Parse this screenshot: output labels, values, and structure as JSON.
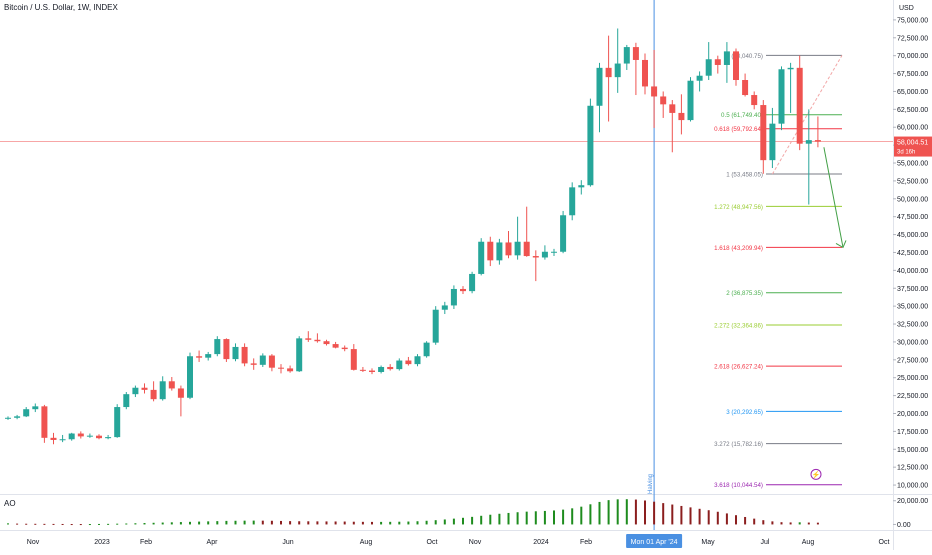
{
  "header": {
    "symbol": "Bitcoin / U.S. Dollar, 1W, INDEX",
    "currency": "USD"
  },
  "indicator": {
    "name": "AO"
  },
  "colors": {
    "up": "#26a69a",
    "down": "#ef5350",
    "vline": "#4a90e2",
    "price_line": "#f7a6a6",
    "ao_up": "#1e8c1e",
    "ao_down": "#8b1e1e",
    "price_tag": "#ef5350",
    "projection_arrow": "#43a047",
    "halving_icon": "#9c27b0"
  },
  "price_label": {
    "value": "58,004.51",
    "countdown": "3d 16h"
  },
  "cursor_date": "Mon 01 Apr '24",
  "event_label": "Halving",
  "chart_data": {
    "type": "candlestick",
    "title": "Bitcoin / U.S. Dollar, 1W, INDEX",
    "ylabel": "USD",
    "ylim": [
      8750,
      77500
    ],
    "y_ticks": [
      10000,
      12500,
      15000,
      17500,
      20000,
      22500,
      25000,
      27500,
      30000,
      32500,
      35000,
      37500,
      40000,
      42500,
      45000,
      47500,
      50000,
      52500,
      55000,
      57500,
      60000,
      62500,
      65000,
      67500,
      70000,
      72500,
      75000
    ],
    "x_tick_labels": [
      "Nov",
      "2023",
      "Feb",
      "Apr",
      "Jun",
      "Aug",
      "Oct",
      "Nov",
      "2024",
      "Feb",
      "May",
      "Jul",
      "Aug",
      "Oct"
    ],
    "series": [
      {
        "t": 0,
        "o": 19300,
        "h": 19600,
        "l": 19100,
        "c": 19400
      },
      {
        "t": 1,
        "o": 19400,
        "h": 19800,
        "l": 19200,
        "c": 19600
      },
      {
        "t": 2,
        "o": 19600,
        "h": 20900,
        "l": 19500,
        "c": 20600
      },
      {
        "t": 3,
        "o": 20600,
        "h": 21400,
        "l": 20200,
        "c": 21000
      },
      {
        "t": 4,
        "o": 21000,
        "h": 21200,
        "l": 15900,
        "c": 16600
      },
      {
        "t": 5,
        "o": 16600,
        "h": 17300,
        "l": 15700,
        "c": 16300
      },
      {
        "t": 6,
        "o": 16300,
        "h": 17000,
        "l": 16000,
        "c": 16400
      },
      {
        "t": 7,
        "o": 16400,
        "h": 17300,
        "l": 16200,
        "c": 17200
      },
      {
        "t": 8,
        "o": 17200,
        "h": 17500,
        "l": 16500,
        "c": 16800
      },
      {
        "t": 9,
        "o": 16800,
        "h": 17200,
        "l": 16600,
        "c": 16900
      },
      {
        "t": 10,
        "o": 16900,
        "h": 17100,
        "l": 16400,
        "c": 16550
      },
      {
        "t": 11,
        "o": 16550,
        "h": 17000,
        "l": 16400,
        "c": 16700
      },
      {
        "t": 12,
        "o": 16700,
        "h": 21300,
        "l": 16600,
        "c": 20900
      },
      {
        "t": 13,
        "o": 20900,
        "h": 23000,
        "l": 20600,
        "c": 22700
      },
      {
        "t": 14,
        "o": 22700,
        "h": 23900,
        "l": 22300,
        "c": 23600
      },
      {
        "t": 15,
        "o": 23600,
        "h": 24200,
        "l": 22800,
        "c": 23300
      },
      {
        "t": 16,
        "o": 23300,
        "h": 24500,
        "l": 21700,
        "c": 22000
      },
      {
        "t": 17,
        "o": 22000,
        "h": 25200,
        "l": 21800,
        "c": 24500
      },
      {
        "t": 18,
        "o": 24500,
        "h": 25100,
        "l": 23200,
        "c": 23500
      },
      {
        "t": 19,
        "o": 23500,
        "h": 23900,
        "l": 19600,
        "c": 22200
      },
      {
        "t": 20,
        "o": 22200,
        "h": 28500,
        "l": 22000,
        "c": 28000
      },
      {
        "t": 21,
        "o": 28000,
        "h": 28800,
        "l": 27200,
        "c": 27800
      },
      {
        "t": 22,
        "o": 27800,
        "h": 28600,
        "l": 27400,
        "c": 28300
      },
      {
        "t": 23,
        "o": 28300,
        "h": 30800,
        "l": 28000,
        "c": 30400
      },
      {
        "t": 24,
        "o": 30400,
        "h": 30500,
        "l": 27200,
        "c": 27600
      },
      {
        "t": 25,
        "o": 27600,
        "h": 29800,
        "l": 27300,
        "c": 29300
      },
      {
        "t": 26,
        "o": 29300,
        "h": 29800,
        "l": 26600,
        "c": 27000
      },
      {
        "t": 27,
        "o": 27000,
        "h": 27700,
        "l": 26100,
        "c": 26800
      },
      {
        "t": 28,
        "o": 26800,
        "h": 28400,
        "l": 26500,
        "c": 28100
      },
      {
        "t": 29,
        "o": 28100,
        "h": 28300,
        "l": 25900,
        "c": 26400
      },
      {
        "t": 30,
        "o": 26400,
        "h": 26900,
        "l": 25600,
        "c": 26300
      },
      {
        "t": 31,
        "o": 26300,
        "h": 26700,
        "l": 25700,
        "c": 25900
      },
      {
        "t": 32,
        "o": 25900,
        "h": 30800,
        "l": 25800,
        "c": 30500
      },
      {
        "t": 33,
        "o": 30500,
        "h": 31500,
        "l": 30000,
        "c": 30300
      },
      {
        "t": 34,
        "o": 30300,
        "h": 31200,
        "l": 29900,
        "c": 30100
      },
      {
        "t": 35,
        "o": 30100,
        "h": 30300,
        "l": 29500,
        "c": 29700
      },
      {
        "t": 36,
        "o": 29700,
        "h": 30000,
        "l": 29100,
        "c": 29200
      },
      {
        "t": 37,
        "o": 29200,
        "h": 29500,
        "l": 28700,
        "c": 29000
      },
      {
        "t": 38,
        "o": 29000,
        "h": 29700,
        "l": 26000,
        "c": 26100
      },
      {
        "t": 39,
        "o": 26100,
        "h": 26500,
        "l": 25800,
        "c": 26000
      },
      {
        "t": 40,
        "o": 26000,
        "h": 26300,
        "l": 25500,
        "c": 25800
      },
      {
        "t": 41,
        "o": 25800,
        "h": 26700,
        "l": 25600,
        "c": 26500
      },
      {
        "t": 42,
        "o": 26500,
        "h": 26900,
        "l": 26000,
        "c": 26200
      },
      {
        "t": 43,
        "o": 26200,
        "h": 27700,
        "l": 26000,
        "c": 27400
      },
      {
        "t": 44,
        "o": 27400,
        "h": 27900,
        "l": 26700,
        "c": 26900
      },
      {
        "t": 45,
        "o": 26900,
        "h": 28300,
        "l": 26600,
        "c": 28000
      },
      {
        "t": 46,
        "o": 28000,
        "h": 30100,
        "l": 27800,
        "c": 29900
      },
      {
        "t": 47,
        "o": 29900,
        "h": 35000,
        "l": 29600,
        "c": 34500
      },
      {
        "t": 48,
        "o": 34500,
        "h": 35600,
        "l": 33900,
        "c": 35100
      },
      {
        "t": 49,
        "o": 35100,
        "h": 37900,
        "l": 34600,
        "c": 37400
      },
      {
        "t": 50,
        "o": 37400,
        "h": 37800,
        "l": 36700,
        "c": 37100
      },
      {
        "t": 51,
        "o": 37100,
        "h": 39800,
        "l": 36800,
        "c": 39500
      },
      {
        "t": 52,
        "o": 39500,
        "h": 44500,
        "l": 39300,
        "c": 44000
      },
      {
        "t": 53,
        "o": 44000,
        "h": 44700,
        "l": 40600,
        "c": 41400
      },
      {
        "t": 54,
        "o": 41400,
        "h": 44400,
        "l": 40800,
        "c": 43900
      },
      {
        "t": 55,
        "o": 43900,
        "h": 45500,
        "l": 41700,
        "c": 42100
      },
      {
        "t": 56,
        "o": 42100,
        "h": 47500,
        "l": 41500,
        "c": 44000
      },
      {
        "t": 57,
        "o": 44000,
        "h": 48900,
        "l": 41900,
        "c": 42000
      },
      {
        "t": 58,
        "o": 42000,
        "h": 42800,
        "l": 38500,
        "c": 41800
      },
      {
        "t": 59,
        "o": 41800,
        "h": 43500,
        "l": 41500,
        "c": 42600
      },
      {
        "t": 60,
        "o": 42600,
        "h": 43000,
        "l": 42000,
        "c": 42600
      },
      {
        "t": 61,
        "o": 42600,
        "h": 48300,
        "l": 42400,
        "c": 47700
      },
      {
        "t": 62,
        "o": 47700,
        "h": 52300,
        "l": 47000,
        "c": 51600
      },
      {
        "t": 63,
        "o": 51600,
        "h": 52600,
        "l": 50600,
        "c": 51900
      },
      {
        "t": 64,
        "o": 51900,
        "h": 64000,
        "l": 51700,
        "c": 63000
      },
      {
        "t": 65,
        "o": 63000,
        "h": 69000,
        "l": 59300,
        "c": 68300
      },
      {
        "t": 66,
        "o": 68300,
        "h": 72800,
        "l": 60800,
        "c": 67000
      },
      {
        "t": 67,
        "o": 67000,
        "h": 73800,
        "l": 64800,
        "c": 68900
      },
      {
        "t": 68,
        "o": 68900,
        "h": 71500,
        "l": 68000,
        "c": 71200
      },
      {
        "t": 69,
        "o": 71200,
        "h": 71800,
        "l": 64500,
        "c": 69400
      },
      {
        "t": 70,
        "o": 69400,
        "h": 70300,
        "l": 64600,
        "c": 65700
      },
      {
        "t": 71,
        "o": 65700,
        "h": 70800,
        "l": 59900,
        "c": 64300
      },
      {
        "t": 72,
        "o": 64300,
        "h": 65000,
        "l": 61300,
        "c": 63200
      },
      {
        "t": 73,
        "o": 63200,
        "h": 63800,
        "l": 56500,
        "c": 62000
      },
      {
        "t": 74,
        "o": 62000,
        "h": 64600,
        "l": 59000,
        "c": 61000
      },
      {
        "t": 75,
        "o": 61000,
        "h": 67000,
        "l": 60800,
        "c": 66500
      },
      {
        "t": 76,
        "o": 66500,
        "h": 67800,
        "l": 65000,
        "c": 67200
      },
      {
        "t": 77,
        "o": 67200,
        "h": 71900,
        "l": 66600,
        "c": 69500
      },
      {
        "t": 78,
        "o": 69500,
        "h": 70000,
        "l": 67500,
        "c": 68700
      },
      {
        "t": 79,
        "o": 68700,
        "h": 71900,
        "l": 66200,
        "c": 70600
      },
      {
        "t": 80,
        "o": 70600,
        "h": 71000,
        "l": 65800,
        "c": 66600
      },
      {
        "t": 81,
        "o": 66600,
        "h": 67500,
        "l": 64300,
        "c": 64500
      },
      {
        "t": 82,
        "o": 64500,
        "h": 65000,
        "l": 62500,
        "c": 63100
      },
      {
        "t": 83,
        "o": 63100,
        "h": 63800,
        "l": 53500,
        "c": 55400
      },
      {
        "t": 84,
        "o": 55400,
        "h": 62700,
        "l": 54300,
        "c": 60500
      },
      {
        "t": 85,
        "o": 60500,
        "h": 68500,
        "l": 59600,
        "c": 68100
      },
      {
        "t": 86,
        "o": 68100,
        "h": 69000,
        "l": 62000,
        "c": 68300
      },
      {
        "t": 87,
        "o": 68300,
        "h": 70000,
        "l": 56800,
        "c": 57700
      },
      {
        "t": 88,
        "o": 57700,
        "h": 62500,
        "l": 49200,
        "c": 58200
      },
      {
        "t": 89,
        "o": 58200,
        "h": 61500,
        "l": 57200,
        "c": 58000
      }
    ],
    "fib_levels": [
      {
        "label": "0 (70,040.75)",
        "price": 70040.75,
        "color": "#787b86"
      },
      {
        "label": "0.5 (61,749.40)",
        "price": 61749.4,
        "color": "#4caf50"
      },
      {
        "label": "0.618 (59,792.64)",
        "price": 59792.64,
        "color": "#f23645"
      },
      {
        "label": "1 (53,458.05)",
        "price": 53458.05,
        "color": "#787b86"
      },
      {
        "label": "1.272 (48,947.56)",
        "price": 48947.56,
        "color": "#9acd32"
      },
      {
        "label": "1.618 (43,209.94)",
        "price": 43209.94,
        "color": "#f23645"
      },
      {
        "label": "2 (36,875.35)",
        "price": 36875.35,
        "color": "#4caf50"
      },
      {
        "label": "2.272 (32,364.86)",
        "price": 32364.86,
        "color": "#9acd32"
      },
      {
        "label": "2.618 (26,627.24)",
        "price": 26627.24,
        "color": "#f23645"
      },
      {
        "label": "3 (20,292.65)",
        "price": 20292.65,
        "color": "#2196f3"
      },
      {
        "label": "3.272 (15,782.16)",
        "price": 15782.16,
        "color": "#787b86"
      },
      {
        "label": "3.618 (10,044.54)",
        "price": 10044.54,
        "color": "#9c27b0"
      }
    ],
    "ao_ylim": [
      -3000,
      24000
    ],
    "ao_ticks": [
      0,
      20000
    ],
    "ao_tick_labels": [
      "0.00",
      "20,000.00"
    ],
    "ao_values": [
      900,
      700,
      600,
      550,
      500,
      450,
      400,
      350,
      330,
      350,
      420,
      500,
      650,
      800,
      1000,
      1200,
      1400,
      1600,
      1800,
      2000,
      2200,
      2400,
      2600,
      2800,
      3000,
      3100,
      3200,
      3250,
      3200,
      3100,
      2950,
      2800,
      2700,
      2650,
      2600,
      2550,
      2500,
      2450,
      2300,
      2200,
      2150,
      2150,
      2200,
      2300,
      2450,
      2700,
      3100,
      3600,
      4200,
      4900,
      5600,
      6400,
      7300,
      8200,
      9000,
      9700,
      10300,
      10800,
      11100,
      11400,
      11800,
      12500,
      13600,
      15000,
      17000,
      19000,
      20500,
      21200,
      21300,
      21000,
      20200,
      19200,
      18000,
      16800,
      15600,
      14400,
      13200,
      12000,
      10700,
      9300,
      7800,
      6300,
      4900,
      3600,
      2600,
      1900,
      1700,
      1800,
      1600,
      1500
    ]
  }
}
